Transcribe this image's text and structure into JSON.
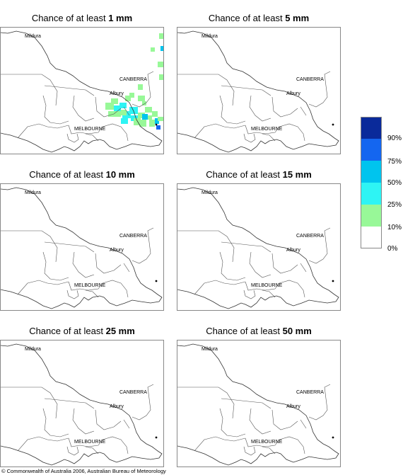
{
  "panels": [
    {
      "prefix": "Chance of at least ",
      "amount": "1 mm",
      "has_rain": true
    },
    {
      "prefix": "Chance of at least ",
      "amount": "5 mm",
      "has_rain": false
    },
    {
      "prefix": "Chance of at least ",
      "amount": "10 mm",
      "has_rain": false
    },
    {
      "prefix": "Chance of at least ",
      "amount": "15 mm",
      "has_rain": false
    },
    {
      "prefix": "Chance of at least ",
      "amount": "25 mm",
      "has_rain": false
    },
    {
      "prefix": "Chance of at least ",
      "amount": "50 mm",
      "has_rain": false
    }
  ],
  "place_labels": {
    "mildura": "Mildura",
    "canberra": "CANBERRA",
    "albury": "Albury",
    "melbourne": "MELBOURNE"
  },
  "legend": {
    "labels": [
      "90%",
      "75%",
      "50%",
      "25%",
      "10%",
      "0%"
    ],
    "colors": [
      "#0a2a9a",
      "#1466f0",
      "#00c4ee",
      "#2ef4f4",
      "#98f898",
      "#ffffff"
    ]
  },
  "copyright": "© Commonwealth of Australia 2006, Australian Bureau of Meteorology"
}
